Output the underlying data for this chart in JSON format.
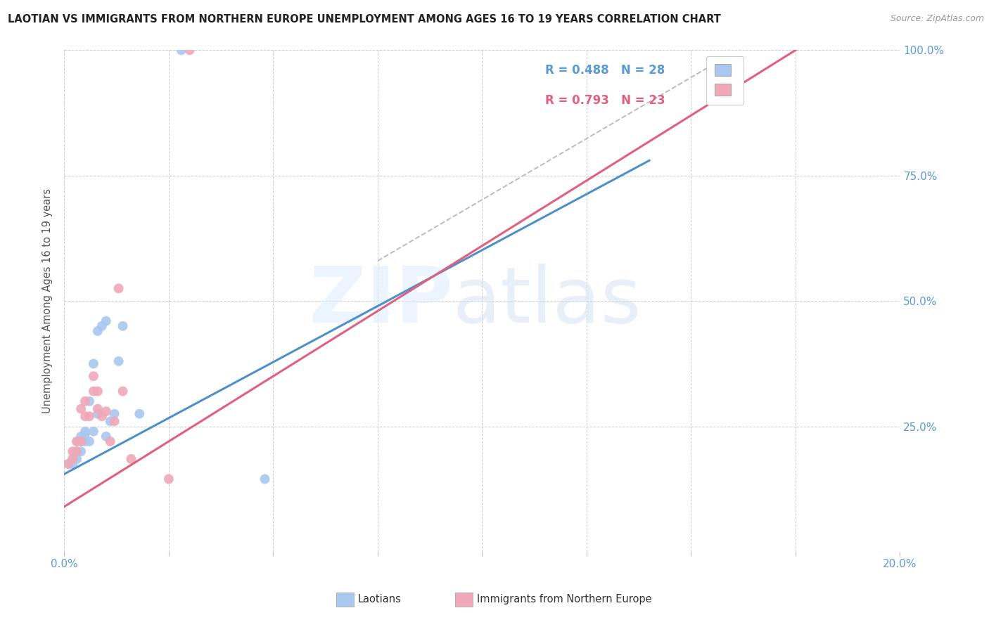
{
  "title": "LAOTIAN VS IMMIGRANTS FROM NORTHERN EUROPE UNEMPLOYMENT AMONG AGES 16 TO 19 YEARS CORRELATION CHART",
  "source": "Source: ZipAtlas.com",
  "ylabel": "Unemployment Among Ages 16 to 19 years",
  "x_min": 0.0,
  "x_max": 0.2,
  "y_min": 0.0,
  "y_max": 1.0,
  "x_ticks": [
    0.0,
    0.025,
    0.05,
    0.075,
    0.1,
    0.125,
    0.15,
    0.175,
    0.2
  ],
  "x_tick_labels": [
    "0.0%",
    "",
    "",
    "",
    "",
    "",
    "",
    "",
    "20.0%"
  ],
  "y_ticks": [
    0.0,
    0.25,
    0.5,
    0.75,
    1.0
  ],
  "y_tick_labels_right": [
    "",
    "25.0%",
    "50.0%",
    "75.0%",
    "100.0%"
  ],
  "legend_r1": "0.488",
  "legend_n1": "28",
  "legend_r2": "0.793",
  "legend_n2": "23",
  "color_blue": "#A8C8F0",
  "color_pink": "#F0A8B8",
  "color_blue_dark": "#5090C8",
  "color_pink_dark": "#E06080",
  "color_blue_text": "#5B9BD5",
  "color_pink_text": "#E06080",
  "background_color": "#FFFFFF",
  "grid_color": "#CCCCCC",
  "laotian_x": [
    0.001,
    0.002,
    0.002,
    0.003,
    0.003,
    0.003,
    0.004,
    0.004,
    0.004,
    0.005,
    0.005,
    0.005,
    0.006,
    0.006,
    0.007,
    0.007,
    0.008,
    0.008,
    0.009,
    0.01,
    0.01,
    0.011,
    0.012,
    0.013,
    0.014,
    0.018,
    0.028,
    0.048
  ],
  "laotian_y": [
    0.175,
    0.175,
    0.185,
    0.185,
    0.2,
    0.22,
    0.2,
    0.22,
    0.23,
    0.22,
    0.235,
    0.24,
    0.22,
    0.3,
    0.24,
    0.375,
    0.275,
    0.44,
    0.45,
    0.23,
    0.46,
    0.26,
    0.275,
    0.38,
    0.45,
    0.275,
    1.0,
    0.145
  ],
  "northern_europe_x": [
    0.001,
    0.002,
    0.002,
    0.003,
    0.003,
    0.004,
    0.004,
    0.005,
    0.005,
    0.006,
    0.007,
    0.007,
    0.008,
    0.008,
    0.009,
    0.01,
    0.011,
    0.012,
    0.013,
    0.014,
    0.016,
    0.025,
    0.03
  ],
  "northern_europe_y": [
    0.175,
    0.185,
    0.2,
    0.2,
    0.22,
    0.22,
    0.285,
    0.27,
    0.3,
    0.27,
    0.32,
    0.35,
    0.285,
    0.32,
    0.27,
    0.28,
    0.22,
    0.26,
    0.525,
    0.32,
    0.185,
    0.145,
    1.0
  ],
  "blue_line_x": [
    0.0,
    0.14
  ],
  "blue_line_y": [
    0.155,
    0.78
  ],
  "pink_line_x": [
    0.0,
    0.175
  ],
  "pink_line_y": [
    0.09,
    1.0
  ],
  "diag_line_x": [
    0.075,
    0.155
  ],
  "diag_line_y": [
    0.58,
    0.97
  ]
}
